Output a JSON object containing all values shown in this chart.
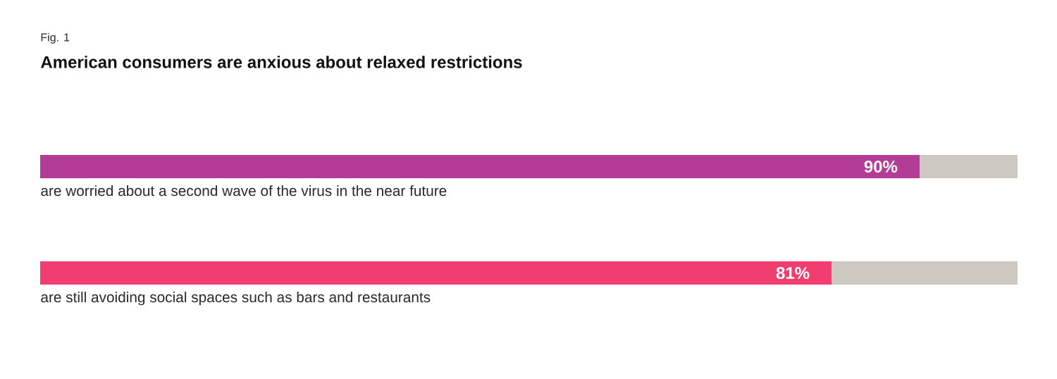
{
  "chart_data": {
    "type": "bar",
    "orientation": "horizontal",
    "stacked": true,
    "title": "American consumers are anxious about relaxed restrictions",
    "annotations": [
      "Fig. 1"
    ],
    "categories": [
      "are worried about a second wave of the virus in the near future",
      "are still avoiding social spaces such as bars and restaurants"
    ],
    "series": [
      {
        "colors": [
          "#b33c96",
          "#f03e71"
        ],
        "values": [
          90,
          81
        ],
        "value_labels": [
          "90%",
          "81%"
        ]
      },
      {
        "color": "#cdc9c1",
        "values": [
          10,
          19
        ]
      }
    ]
  }
}
